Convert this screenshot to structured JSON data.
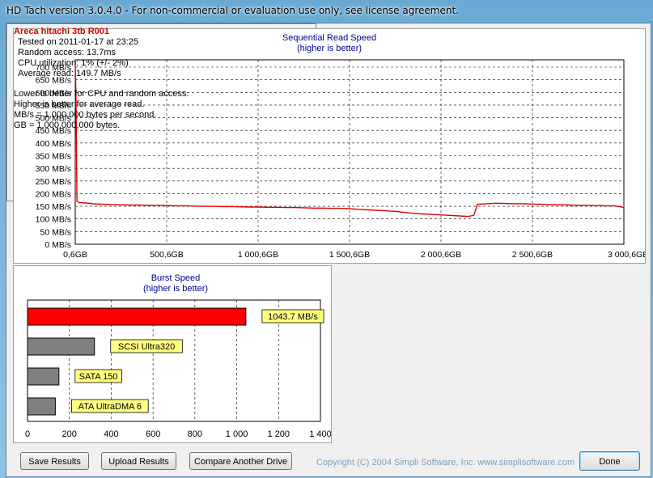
{
  "window": {
    "title": "HD Tach version 3.0.4.0  - For non-commercial or evaluation use only, see license agreement."
  },
  "seq_chart": {
    "title": "Sequential Read Speed",
    "subtitle": "(higher is better)",
    "y_ticks": [
      "700 MB/s",
      "650 MB/s",
      "600 MB/s",
      "550 MB/s",
      "500 MB/s",
      "450 MB/s",
      "400 MB/s",
      "350 MB/s",
      "300 MB/s",
      "250 MB/s",
      "200 MB/s",
      "150 MB/s",
      "100 MB/s",
      "50 MB/s",
      "0 MB/s"
    ],
    "x_ticks": [
      "0,6GB",
      "500,6GB",
      "1 000,6GB",
      "1 500,6GB",
      "2 000,6GB",
      "2 500,6GB",
      "3 000,6GE"
    ]
  },
  "chart_data": [
    {
      "type": "line",
      "title": "Sequential Read Speed",
      "subtitle": "(higher is better)",
      "xlabel": "",
      "ylabel": "",
      "ylim": [
        0,
        730
      ],
      "xlim": [
        0.6,
        3000.6
      ],
      "grid": true,
      "series": [
        {
          "color": "#e00000",
          "x": [
            0.6,
            5,
            10,
            20,
            60,
            100,
            150,
            200,
            250,
            300,
            350,
            400,
            450,
            500,
            550,
            600,
            650,
            700,
            750,
            800,
            850,
            900,
            950,
            1000,
            1050,
            1100,
            1150,
            1200,
            1250,
            1300,
            1350,
            1400,
            1450,
            1500,
            1550,
            1600,
            1650,
            1700,
            1750,
            1800,
            1850,
            1900,
            1950,
            2000,
            2050,
            2100,
            2150,
            2180,
            2200,
            2250,
            2300,
            2350,
            2400,
            2450,
            2500,
            2550,
            2600,
            2650,
            2700,
            2750,
            2800,
            2850,
            2900,
            2950,
            3000.6
          ],
          "y": [
            720,
            560,
            170,
            165,
            163,
            160,
            158,
            157,
            156,
            155,
            155,
            154,
            154,
            153,
            152,
            152,
            151,
            150,
            150,
            149,
            149,
            148,
            147,
            147,
            146,
            146,
            145,
            145,
            144,
            143,
            143,
            142,
            142,
            141,
            138,
            136,
            134,
            132,
            130,
            126,
            122,
            120,
            118,
            116,
            114,
            112,
            110,
            114,
            158,
            160,
            162,
            161,
            160,
            160,
            159,
            158,
            157,
            156,
            155,
            154,
            154,
            153,
            152,
            152,
            145
          ]
        }
      ]
    },
    {
      "type": "bar",
      "title": "Burst Speed",
      "subtitle": "(higher is better)",
      "orientation": "horizontal",
      "categories": [
        "Areca hitachi 3tb R001",
        "SCSI Ultra320",
        "SATA 150",
        "ATA UltraDMA 6"
      ],
      "values": [
        1043.7,
        320,
        150,
        133
      ],
      "labels": [
        "1043.7 MB/s",
        "SCSI Ultra320",
        "SATA 150",
        "ATA UltraDMA 6"
      ],
      "colors": [
        "#ff0000",
        "#808080",
        "#808080",
        "#808080"
      ],
      "xlim": [
        0,
        1400
      ],
      "x_ticks": [
        "0",
        "200",
        "400",
        "600",
        "800",
        "1 000",
        "1 200",
        "1 400"
      ],
      "grid": true
    }
  ],
  "burst_chart": {
    "title": "Burst Speed",
    "subtitle": "(higher is better)"
  },
  "info": {
    "drive_name": "Areca hitachi 3tb R001",
    "tested_on": "Tested on 2011-01-17 at 23:25",
    "random_access": "Random access: 13.7ms",
    "cpu": "CPU utilization: 1% (+/- 2%)",
    "average_read": "Average read: 149.7 MB/s",
    "note1": "Lower is better for CPU and random access.",
    "note2": "Higher is better for average read.",
    "note3": "MB/s = 1,000,000 bytes per second.",
    "note4": "GB = 1,000,000,000 bytes."
  },
  "buttons": {
    "save": "Save Results",
    "upload": "Upload Results",
    "compare": "Compare Another Drive",
    "done": "Done"
  },
  "footer": {
    "copyright": "Copyright (C) 2004 Simpli Software, Inc. www.simplisoftware.com"
  },
  "colors": {
    "accent_red": "#e00000",
    "title_blue": "#00008b",
    "copyright_gray": "#7f9db9"
  }
}
